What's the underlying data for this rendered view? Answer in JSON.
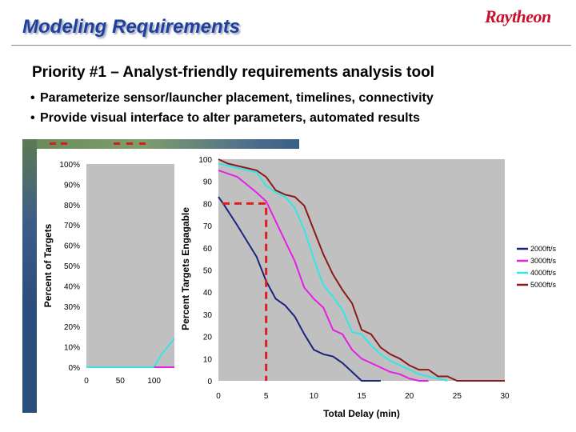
{
  "slide": {
    "title": "Modeling Requirements",
    "logo": "Raytheon",
    "priority": "Priority #1 – Analyst-friendly requirements analysis tool",
    "bullets": [
      "Parameterize sensor/launcher placement, timelines, connectivity",
      "Provide visual interface to alter parameters, automated results"
    ]
  },
  "colors": {
    "title": "#1f3f9e",
    "logo": "#c8102e",
    "plot_bg": "#c0c0c0",
    "dashed_marker": "#dd1e1e"
  },
  "chart_data": [
    {
      "type": "line",
      "ylabel": "Percent of Targets",
      "y_ticks": [
        "100%",
        "90%",
        "80%",
        "70%",
        "60%",
        "50%",
        "40%",
        "30%",
        "20%",
        "10%",
        "0%"
      ],
      "x_ticks": [
        "0",
        "50",
        "100"
      ],
      "xlim": [
        0,
        130
      ],
      "ylim": [
        0,
        100
      ],
      "series": [
        {
          "color": "#33e6e6",
          "x": [
            0,
            50,
            100,
            110,
            120,
            130
          ],
          "y": [
            0,
            0,
            0,
            6,
            10,
            14
          ]
        },
        {
          "color": "#e61ee6",
          "x": [
            100,
            130
          ],
          "y": [
            0,
            0
          ]
        }
      ]
    },
    {
      "type": "line",
      "ylabel": "Percent Targets Engagable",
      "xlabel": "Total Delay (min)",
      "x_ticks": [
        "0",
        "5",
        "10",
        "15",
        "20",
        "25",
        "30"
      ],
      "y_ticks": [
        "100",
        "90",
        "80",
        "70",
        "60",
        "50",
        "40",
        "30",
        "20",
        "10",
        "0"
      ],
      "xlim": [
        0,
        30
      ],
      "ylim": [
        0,
        100
      ],
      "legend_position": "right",
      "series": [
        {
          "name": "2000ft/s",
          "color": "#1a237e",
          "x": [
            0,
            0.5,
            2,
            4,
            5,
            6,
            7,
            8,
            9,
            10,
            11,
            12,
            13,
            14,
            15,
            17
          ],
          "y": [
            83,
            80,
            70,
            56,
            45,
            37,
            34,
            29,
            21,
            14,
            12,
            11,
            8,
            4,
            0,
            0
          ]
        },
        {
          "name": "3000ft/s",
          "color": "#e61ee6",
          "x": [
            0,
            2,
            4,
            5,
            6,
            7,
            8,
            9,
            10,
            11,
            12,
            13,
            14,
            15,
            16,
            17,
            18,
            19,
            20,
            21,
            22
          ],
          "y": [
            95,
            92,
            85,
            81,
            72,
            63,
            54,
            42,
            37,
            33,
            23,
            21,
            14,
            10,
            8,
            6,
            4,
            3,
            1,
            0,
            0
          ]
        },
        {
          "name": "4000ft/s",
          "color": "#33e6e6",
          "x": [
            0,
            2,
            4,
            5,
            6,
            7,
            8,
            9,
            10,
            11,
            12,
            13,
            14,
            15,
            16,
            17,
            18,
            19,
            20,
            21,
            22,
            23,
            24
          ],
          "y": [
            98,
            96,
            94,
            88,
            85,
            83,
            78,
            68,
            55,
            43,
            38,
            32,
            22,
            21,
            16,
            12,
            9,
            7,
            5,
            3,
            2,
            1,
            0
          ]
        },
        {
          "name": "5000ft/s",
          "color": "#8b1a1a",
          "x": [
            0,
            1,
            3,
            4,
            5,
            6,
            7,
            8,
            9,
            10,
            11,
            12,
            13,
            14,
            15,
            16,
            17,
            18,
            19,
            20,
            21,
            22,
            23,
            24,
            25,
            30
          ],
          "y": [
            100,
            98,
            96,
            95,
            92,
            86,
            84,
            83,
            79,
            68,
            57,
            48,
            41,
            35,
            23,
            21,
            15,
            12,
            10,
            7,
            5,
            5,
            2,
            2,
            0,
            0
          ]
        }
      ],
      "annotation": {
        "x": 5,
        "y": 80
      }
    }
  ]
}
